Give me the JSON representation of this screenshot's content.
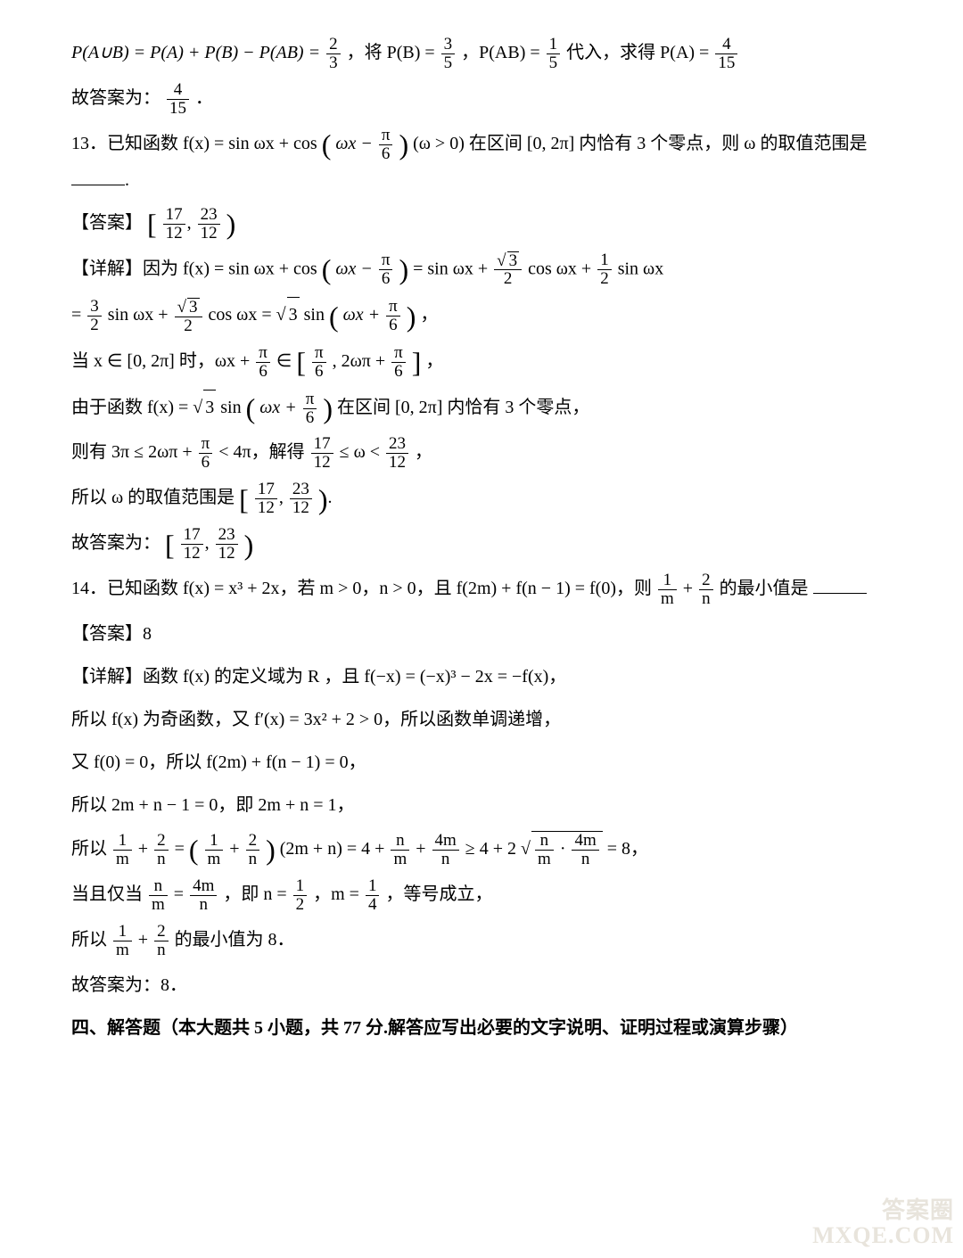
{
  "lines": {
    "l1a": "P(A∪B) = P(A) + P(B) − P(AB) = ",
    "l1b": "，将 P(B) = ",
    "l1c": "，P(AB) = ",
    "l1d": " 代入，求得 P(A) = ",
    "l2": "故答案为：",
    "q13a": "13．已知函数 f(x) = sin ωx + cos",
    "q13b": "(ω > 0) 在区间 [0, 2π] 内恰有 3 个零点，则 ω 的取值范围是",
    "ans_label": "【答案】",
    "detail_label": "【详解】因为 f(x) = sin ωx + cos",
    "detail_eq": " = sin ωx + ",
    "detail_eq2": " cos ωx + ",
    "detail_eq3": " sin ωx",
    "l_eq2a": " sin ωx + ",
    "l_eq2b": " cos ωx = ",
    "l_eq2c": " sin",
    "when_x": "当 x ∈ [0, 2π] 时，ωx + ",
    "when_x2": " ∈ ",
    "since": "由于函数 f(x) = ",
    "since2": " sin",
    "since3": " 在区间 [0, 2π] 内恰有 3 个零点，",
    "then_a": "则有 3π ≤ 2ωπ + ",
    "then_b": " < 4π，解得 ",
    "then_c": " ≤ ω < ",
    "so_range": "所以 ω 的取值范围是 ",
    "so_ans": "故答案为：",
    "q14a": "14．已知函数 f(x) = x³ + 2x，若 m > 0，n > 0，且 f(2m) + f(n − 1) = f(0)，则 ",
    "q14b": " 的最小值是",
    "ans14": "【答案】8",
    "d14a": "【详解】函数 f(x) 的定义域为 R ，且 f(−x) = (−x)³ − 2x = −f(x)，",
    "d14b": "所以 f(x) 为奇函数，又 f′(x) = 3x² + 2 > 0，所以函数单调递增，",
    "d14c": "又 f(0) = 0，所以 f(2m) + f(n − 1) = 0，",
    "d14d": "所以 2m + n − 1 = 0，即 2m + n = 1，",
    "d14e_a": "所以 ",
    "d14e_b": " = ",
    "d14e_c": "(2m + n) = 4 + ",
    "d14e_d": " ≥ 4 + 2",
    "d14e_e": " = 8，",
    "d14f_a": "当且仅当 ",
    "d14f_b": "，即 n = ",
    "d14f_c": "，m = ",
    "d14f_d": "，等号成立，",
    "d14g_a": "所以 ",
    "d14g_b": " 的最小值为 8．",
    "d14h": "故答案为：8．",
    "section4": "四、解答题（本大题共 5 小题，共 77 分.解答应写出必要的文字说明、证明过程或演算步骤）"
  },
  "fracs": {
    "two_thirds": {
      "n": "2",
      "d": "3"
    },
    "three_fifths": {
      "n": "3",
      "d": "5"
    },
    "one_fifth": {
      "n": "1",
      "d": "5"
    },
    "four_fifteen": {
      "n": "4",
      "d": "15"
    },
    "seventeen_twelve": {
      "n": "17",
      "d": "12"
    },
    "twentythree_twelve": {
      "n": "23",
      "d": "12"
    },
    "pi_six": {
      "n": "π",
      "d": "6"
    },
    "sqrt3_2": {
      "n": "√3",
      "d": "2"
    },
    "one_half": {
      "n": "1",
      "d": "2"
    },
    "three_halves": {
      "n": "3",
      "d": "2"
    },
    "one_m": {
      "n": "1",
      "d": "m"
    },
    "two_n": {
      "n": "2",
      "d": "n"
    },
    "n_m": {
      "n": "n",
      "d": "m"
    },
    "fourm_n": {
      "n": "4m",
      "d": "n"
    },
    "one_quarter": {
      "n": "1",
      "d": "4"
    }
  },
  "strings": {
    "omega_x_minus_pi6": "ωx − ",
    "omega_x_plus_pi6": "ωx + ",
    "two_omega_pi_plus": ", 2ωπ + ",
    "sqrt3": "3",
    "plus": " + ",
    "eq": " = ",
    "comma": "，",
    "dot": "．",
    "period_cn": "．",
    "mult_frac": " · ",
    "brkL": "[",
    "brkR": "]",
    "parL": "(",
    "parR": ")"
  },
  "watermark": {
    "l1": "答案圈",
    "l2": "MXQE.COM"
  }
}
